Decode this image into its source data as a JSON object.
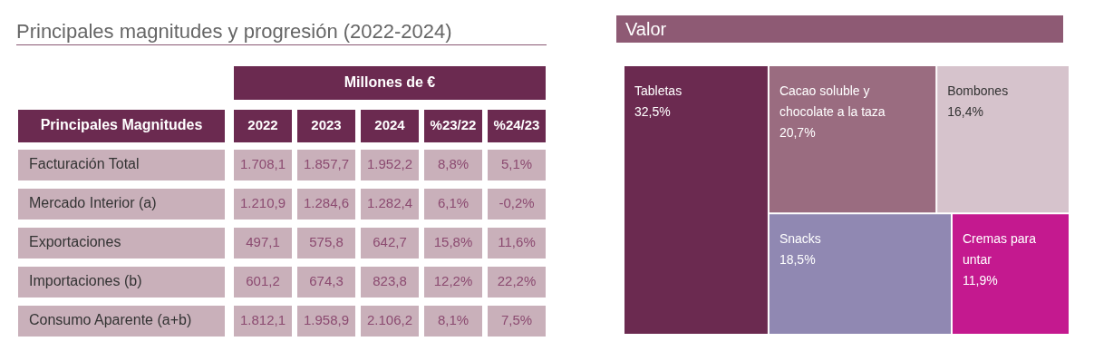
{
  "chart_data": [
    {
      "type": "heatmap",
      "title": "Principales magnitudes y progresión (2022-2024)",
      "xlabel": "Millones de €",
      "ylabel": "Principales Magnitudes",
      "categories": [
        "2022",
        "2023",
        "2024",
        "%23/22",
        "%24/23"
      ],
      "y_categories": [
        "Facturación Total",
        "Mercado Interior (a)",
        "Exportaciones",
        "Importaciones (b)",
        "Consumo Aparente (a+b)"
      ],
      "cells": [
        [
          1708.1,
          1857.7,
          1952.2,
          8.8,
          5.1
        ],
        [
          1210.9,
          1284.6,
          1282.4,
          6.1,
          -0.2
        ],
        [
          497.1,
          575.8,
          642.7,
          15.8,
          11.6
        ],
        [
          601.2,
          674.3,
          823.8,
          12.2,
          22.2
        ],
        [
          1812.1,
          1958.9,
          2106.2,
          8.1,
          7.5
        ]
      ],
      "cell_labels": [
        [
          "1.708,1",
          "1.857,7",
          "1.952,2",
          "8,8%",
          "5,1%"
        ],
        [
          "1.210,9",
          "1.284,6",
          "1.282,4",
          "6,1%",
          "-0,2%"
        ],
        [
          "497,1",
          "575,8",
          "642,7",
          "15,8%",
          "11,6%"
        ],
        [
          "601,2",
          "674,3",
          "823,8",
          "12,2%",
          "22,2%"
        ],
        [
          "1.812,1",
          "1.958,9",
          "2.106,2",
          "8,1%",
          "7,5%"
        ]
      ],
      "color": "#c9b0ba"
    },
    {
      "type": "other",
      "title": "Valor",
      "categories": [
        "Tabletas",
        "Cacao soluble y chocolate a la taza",
        "Bombones",
        "Snacks",
        "Cremas para untar"
      ],
      "values": [
        32.5,
        20.7,
        16.4,
        18.5,
        11.9
      ],
      "value_labels": [
        "32,5%",
        "20,7%",
        "16,4%",
        "18,5%",
        "11,9%"
      ],
      "colors": [
        "#6b2a50",
        "#9a6c80",
        "#d6c3cc",
        "#9088b2",
        "#c4198f"
      ]
    }
  ]
}
